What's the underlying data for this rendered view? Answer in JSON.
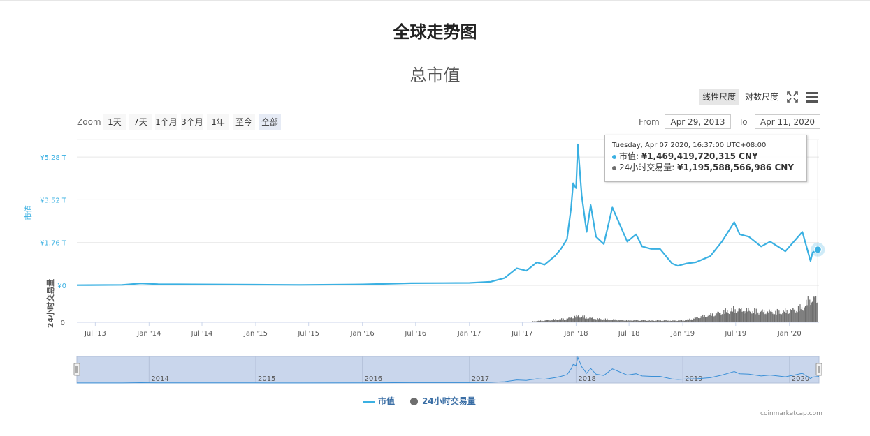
{
  "page": {
    "title": "全球走势图"
  },
  "chart_title": "总市值",
  "scale_buttons": {
    "linear": "线性尺度",
    "log": "对数尺度"
  },
  "zoom": {
    "label": "Zoom",
    "buttons": [
      "1天",
      "7天",
      "1个月",
      "3个月",
      "1年",
      "至今",
      "全部"
    ],
    "active": "全部"
  },
  "range": {
    "from_label": "From",
    "from_value": "Apr 29, 2013",
    "to_label": "To",
    "to_value": "Apr 11, 2020"
  },
  "tooltip": {
    "date": "Tuesday, Apr 07 2020, 16:37:00 UTC+08:00",
    "series1_label": "市值: ",
    "series1_value": "¥1,469,419,720,315 CNY",
    "series2_label": "24小时交易量: ",
    "series2_value": "¥1,195,588,566,986 CNY"
  },
  "legend": {
    "series1": "市值",
    "series2": "24小时交易量"
  },
  "credits": "coinmarketcap.com",
  "colors": {
    "market_cap": "#3ab0e2",
    "volume": "#6e6e6e",
    "navigator_fill": "#c9d6ec"
  },
  "chart_data": {
    "type": "line",
    "title": "总市值",
    "x_range": [
      "2013-04-29",
      "2020-04-11"
    ],
    "x_ticks": [
      "Jul '13",
      "Jan '14",
      "Jul '14",
      "Jan '15",
      "Jul '15",
      "Jan '16",
      "Jul '16",
      "Jan '17",
      "Jul '17",
      "Jan '18",
      "Jul '18",
      "Jan '19",
      "Jul '19",
      "Jan '20"
    ],
    "navigator_ticks": [
      "2014",
      "2015",
      "2016",
      "2017",
      "2018",
      "2019",
      "2020"
    ],
    "y_axis_market_cap": {
      "label": "市值",
      "ticks": [
        "¥0",
        "¥1.76 T",
        "¥3.52 T",
        "¥5.28 T"
      ],
      "unit": "trillion CNY",
      "ylim": [
        0,
        6.0
      ]
    },
    "y_axis_volume": {
      "label": "24小时交易量",
      "ticks": [
        "0"
      ]
    },
    "series": [
      {
        "name": "市值",
        "x": [
          "2013-04-29",
          "2013-10-01",
          "2013-12-04",
          "2014-02-01",
          "2014-06-01",
          "2015-01-01",
          "2015-06-01",
          "2016-01-01",
          "2016-06-15",
          "2017-01-01",
          "2017-03-15",
          "2017-05-01",
          "2017-06-12",
          "2017-07-15",
          "2017-08-20",
          "2017-09-15",
          "2017-10-20",
          "2017-11-10",
          "2017-12-01",
          "2017-12-15",
          "2017-12-22",
          "2018-01-01",
          "2018-01-07",
          "2018-01-20",
          "2018-02-06",
          "2018-02-20",
          "2018-03-10",
          "2018-04-06",
          "2018-05-05",
          "2018-06-25",
          "2018-07-25",
          "2018-08-15",
          "2018-09-15",
          "2018-10-15",
          "2018-11-25",
          "2018-12-15",
          "2019-01-15",
          "2019-02-15",
          "2019-04-05",
          "2019-05-15",
          "2019-06-26",
          "2019-07-15",
          "2019-08-15",
          "2019-09-26",
          "2019-10-27",
          "2019-12-18",
          "2020-02-14",
          "2020-03-13",
          "2020-03-20",
          "2020-04-07",
          "2020-04-11"
        ],
        "y": [
          0.01,
          0.02,
          0.08,
          0.05,
          0.04,
          0.03,
          0.02,
          0.04,
          0.09,
          0.1,
          0.15,
          0.3,
          0.7,
          0.6,
          0.95,
          0.85,
          1.2,
          1.5,
          1.9,
          3.2,
          4.2,
          4.0,
          5.8,
          3.7,
          2.2,
          3.3,
          2.0,
          1.7,
          3.2,
          1.8,
          2.1,
          1.6,
          1.5,
          1.5,
          0.9,
          0.8,
          0.9,
          0.95,
          1.2,
          1.8,
          2.6,
          2.1,
          2.0,
          1.6,
          1.8,
          1.4,
          2.2,
          1.0,
          1.35,
          1.47,
          1.53
        ]
      },
      {
        "name": "24小时交易量",
        "x": [
          "2017-08-01",
          "2017-12-01",
          "2018-01-06",
          "2018-03-01",
          "2018-06-01",
          "2018-10-01",
          "2019-01-01",
          "2019-04-01",
          "2019-06-26",
          "2019-09-01",
          "2019-12-01",
          "2020-02-14",
          "2020-03-13",
          "2020-04-07"
        ],
        "y": [
          0.05,
          0.2,
          0.35,
          0.2,
          0.12,
          0.1,
          0.1,
          0.4,
          0.7,
          0.6,
          0.55,
          0.8,
          1.3,
          1.2
        ]
      }
    ],
    "highlight_point": {
      "x": "2020-04-07",
      "y": 1.47
    },
    "grid": true,
    "legend_position": "bottom"
  }
}
